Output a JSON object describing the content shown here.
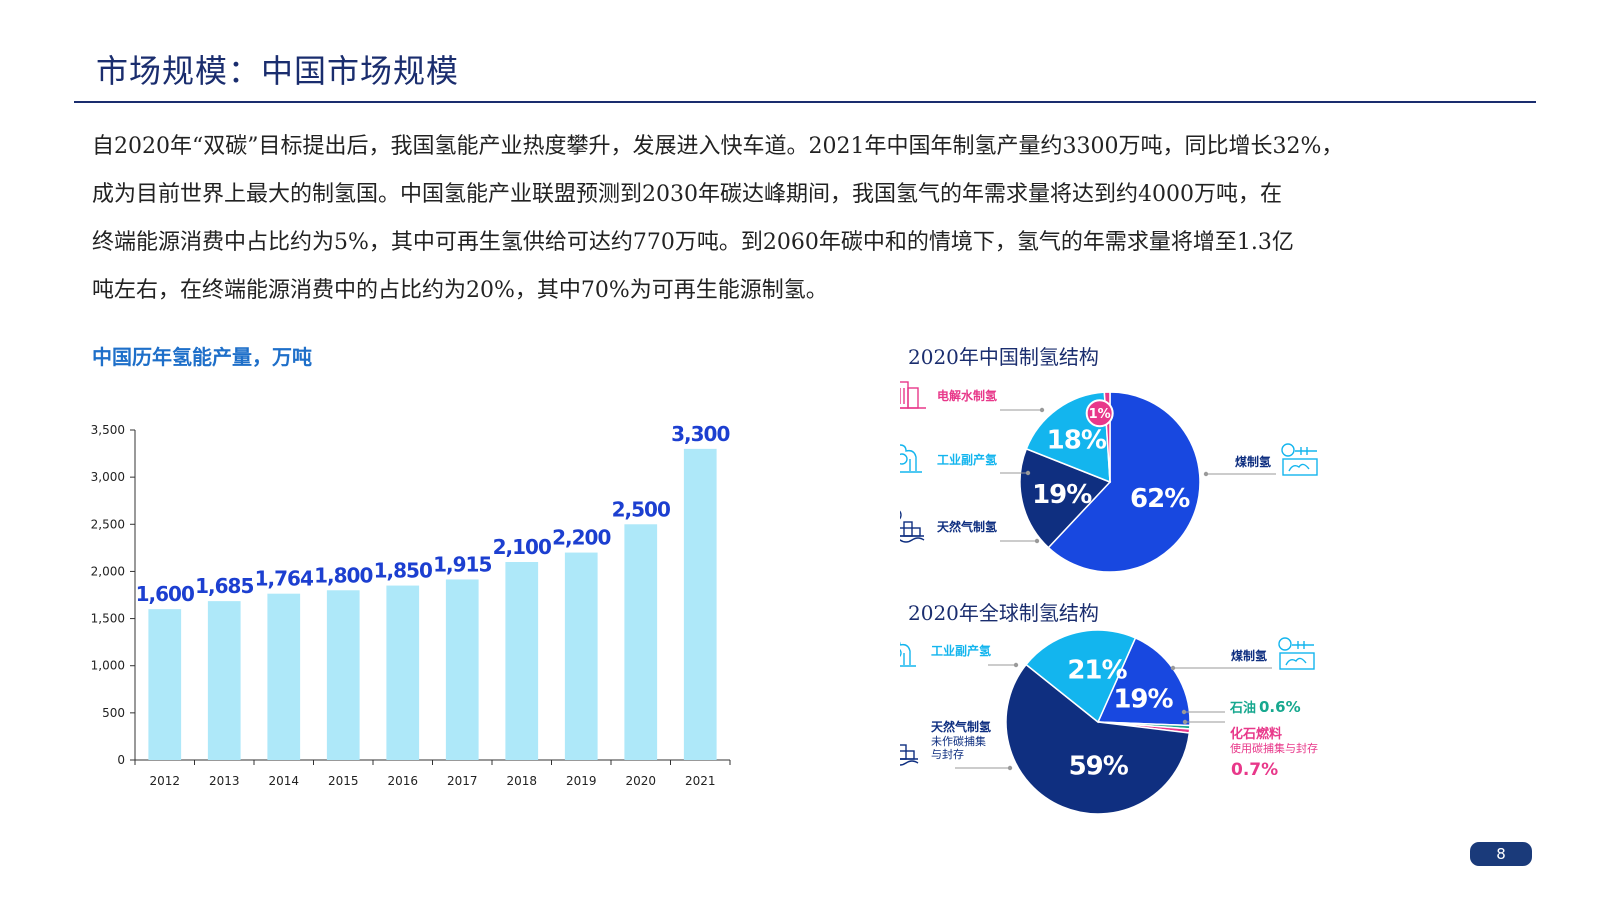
{
  "page": {
    "title": "市场规模：中国市场规模",
    "page_number": "8"
  },
  "intro": {
    "lines": [
      "自2020年“双碳”目标提出后，我国氢能产业热度攀升，发展进入快车道。2021年中国年制氢产量约3300万吨，同比增长32%，",
      "成为目前世界上最大的制氢国。中国氢能产业联盟预测到2030年碳达峰期间，我国氢气的年需求量将达到约4000万吨，在",
      "终端能源消费中占比约为5%，其中可再生氢供给可达约770万吨。到2060年碳中和的情境下，氢气的年需求量将增至1.3亿",
      "吨左右，在终端能源消费中的占比约为20%，其中70%为可再生能源制氢。"
    ]
  },
  "chart_data": [
    {
      "type": "bar",
      "title": "中国历年氢能产量，万吨",
      "categories": [
        "2012",
        "2013",
        "2014",
        "2015",
        "2016",
        "2017",
        "2018",
        "2019",
        "2020",
        "2021"
      ],
      "values": [
        1600,
        1685,
        1764,
        1800,
        1850,
        1915,
        2100,
        2200,
        2500,
        3300
      ],
      "value_labels": [
        "1,600",
        "1,685",
        "1,764",
        "1,800",
        "1,850",
        "1,915",
        "2,100",
        "2,200",
        "2,500",
        "3,300"
      ],
      "ylim": [
        0,
        3500
      ],
      "yticks": [
        0,
        500,
        1000,
        1500,
        2000,
        2500,
        3000,
        3500
      ],
      "ytick_labels": [
        "0",
        "500",
        "1,000",
        "1,500",
        "2,000",
        "2,500",
        "3,000",
        "3,500"
      ],
      "bar_color": "#aee8f9",
      "label_color": "#1c3fd0",
      "grid": false
    },
    {
      "type": "pie",
      "title": "2020年中国制氢结构",
      "slices": [
        {
          "label": "煤制氢",
          "value": 62,
          "text": "62%",
          "color": "#1848e0"
        },
        {
          "label": "天然气制氢",
          "value": 19,
          "text": "19%",
          "color": "#0f2f80"
        },
        {
          "label": "工业副产氢",
          "value": 18,
          "text": "18%",
          "color": "#13b5ee"
        },
        {
          "label": "电解水制氢",
          "value": 1,
          "text": "1%",
          "color": "#e8388a"
        }
      ]
    },
    {
      "type": "pie",
      "title": "2020年全球制氢结构",
      "slices": [
        {
          "label": "煤制氢",
          "value": 19,
          "text": "19%",
          "color": "#1848e0"
        },
        {
          "label": "石油",
          "value": 0.6,
          "text": "0.6%",
          "color": "#17a88f"
        },
        {
          "label": "化石燃料",
          "sublabel": "使用碳捕集与封存",
          "value": 0.7,
          "text": "0.7%",
          "color": "#e8388a"
        },
        {
          "label": "天然气制氢",
          "sublabel_lines": [
            "未作碳捕集",
            "与封存"
          ],
          "value": 59,
          "text": "59%",
          "color": "#0f2f80"
        },
        {
          "label": "工业副产氢",
          "value": 21,
          "text": "21%",
          "color": "#13b5ee"
        }
      ]
    }
  ],
  "icons": {
    "electrolysis": "electrolysis-icon",
    "industry": "industrial-plant-icon",
    "natural_gas": "natural-gas-icon",
    "coal": "coal-hydrogen-icon"
  },
  "colors": {
    "title": "#1a2d6e",
    "icon_pink": "#e8388a",
    "icon_cyan": "#13b5ee",
    "icon_navy": "#0f2f80",
    "oil_green": "#17a88f"
  }
}
